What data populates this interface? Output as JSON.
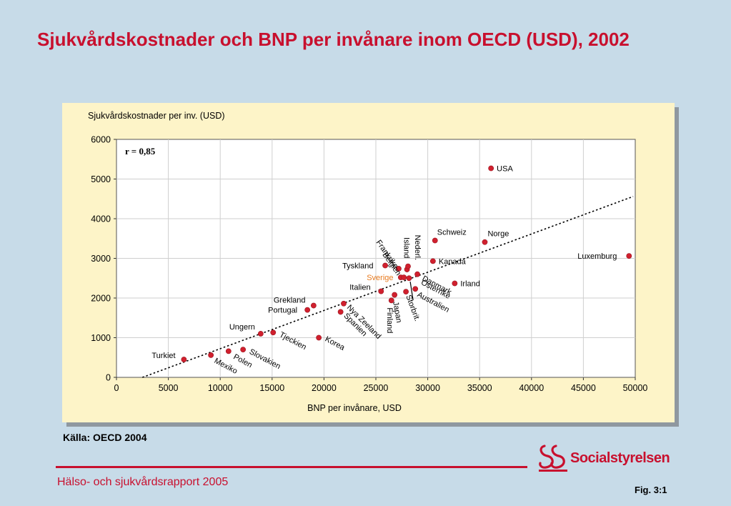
{
  "slide": {
    "title": "Sjukvårdskostnader och BNP per invånare inom OECD (USD), 2002",
    "source": "Källa: OECD 2004",
    "footer": "Hälso- och sjukvårdsrapport 2005",
    "fig": "Fig. 3:1",
    "logo_text": "Socialstyrelsen",
    "accent_color": "#c8102e"
  },
  "chart_data": {
    "type": "scatter",
    "ylabel": "Sjukvårdskostnader per inv. (USD)",
    "xlabel": "BNP per invånare, USD",
    "xlim": [
      0,
      50000
    ],
    "ylim": [
      0,
      6000
    ],
    "xticks": [
      "0",
      "5000",
      "10000",
      "15000",
      "20000",
      "25000",
      "30000",
      "35000",
      "40000",
      "45000",
      "50000"
    ],
    "yticks": [
      "0",
      "1000",
      "2000",
      "3000",
      "4000",
      "5000",
      "6000"
    ],
    "grid": true,
    "annotation": "r = 0,85",
    "highlight_color": "#e87a1e",
    "point_color": "#d0202e",
    "trendline": {
      "x": [
        2500,
        49800
      ],
      "y": [
        0,
        4560
      ]
    },
    "points": [
      {
        "name": "USA",
        "x": 36100,
        "y": 5270
      },
      {
        "name": "Luxemburg",
        "x": 49400,
        "y": 3060
      },
      {
        "name": "Norge",
        "x": 35500,
        "y": 3410
      },
      {
        "name": "Schweiz",
        "x": 30700,
        "y": 3450
      },
      {
        "name": "Kanada",
        "x": 30500,
        "y": 2930
      },
      {
        "name": "Irland",
        "x": 32600,
        "y": 2370
      },
      {
        "name": "Tyskland",
        "x": 25900,
        "y": 2820
      },
      {
        "name": "Frankrike",
        "x": 27200,
        "y": 2740
      },
      {
        "name": "Belgien",
        "x": 27400,
        "y": 2520
      },
      {
        "name": "Island",
        "x": 28000,
        "y": 2720
      },
      {
        "name": "Nederl.",
        "x": 28100,
        "y": 2800
      },
      {
        "name": "Sverige",
        "x": 27700,
        "y": 2520
      },
      {
        "name": "Danmark",
        "x": 29000,
        "y": 2600
      },
      {
        "name": "Österrike",
        "x": 28200,
        "y": 2500
      },
      {
        "name": "Storbrit.",
        "x": 27900,
        "y": 2160
      },
      {
        "name": "Australien",
        "x": 28800,
        "y": 2230
      },
      {
        "name": "Japan",
        "x": 26800,
        "y": 2080
      },
      {
        "name": "Finland",
        "x": 26500,
        "y": 1940
      },
      {
        "name": "Italien",
        "x": 25500,
        "y": 2170
      },
      {
        "name": "Grekland",
        "x": 19000,
        "y": 1810
      },
      {
        "name": "Portugal",
        "x": 18400,
        "y": 1700
      },
      {
        "name": "Nya Zeeland",
        "x": 21900,
        "y": 1860
      },
      {
        "name": "Spanien",
        "x": 21600,
        "y": 1650
      },
      {
        "name": "Korea",
        "x": 19500,
        "y": 1000
      },
      {
        "name": "Ungern",
        "x": 13900,
        "y": 1100
      },
      {
        "name": "Tjeckien",
        "x": 15100,
        "y": 1130
      },
      {
        "name": "Slovakien",
        "x": 12200,
        "y": 700
      },
      {
        "name": "Polen",
        "x": 10800,
        "y": 660
      },
      {
        "name": "Mexiko",
        "x": 9100,
        "y": 560
      },
      {
        "name": "Turkiet",
        "x": 6500,
        "y": 450
      }
    ]
  }
}
